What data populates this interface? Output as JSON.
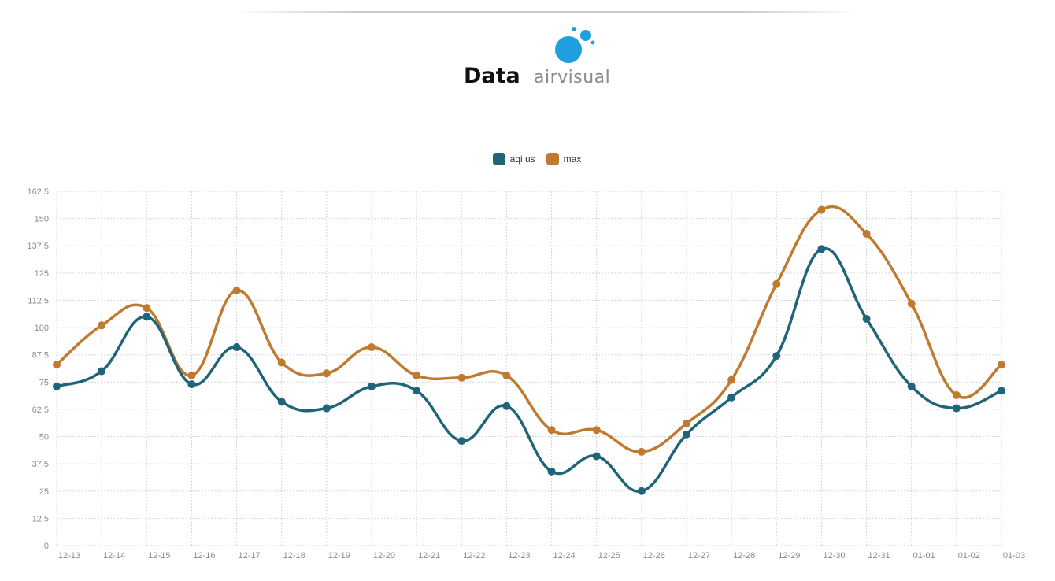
{
  "header": {
    "data_label": "Data",
    "logo_text": "airvisual",
    "colors": {
      "logo_blue": "#1e9fe0"
    }
  },
  "chart_data": {
    "type": "line",
    "categories": [
      "12-13",
      "12-14",
      "12-15",
      "12-16",
      "12-17",
      "12-18",
      "12-19",
      "12-20",
      "12-21",
      "12-22",
      "12-23",
      "12-24",
      "12-25",
      "12-26",
      "12-27",
      "12-28",
      "12-29",
      "12-30",
      "12-31",
      "01-01",
      "01-02",
      "01-03"
    ],
    "ylim": [
      0,
      162.5
    ],
    "yticks": [
      "0",
      "12.5",
      "25",
      "37.5",
      "50",
      "62.5",
      "75",
      "87.5",
      "100",
      "112.5",
      "125",
      "137.5",
      "150",
      "162.5"
    ],
    "grid": true,
    "smooth": true,
    "legend_position": "top-center",
    "series": [
      {
        "name": "aqi us",
        "color": "#1f6478",
        "values": [
          73,
          80,
          105,
          74,
          91,
          66,
          63,
          73,
          71,
          48,
          64,
          34,
          41,
          25,
          51,
          68,
          87,
          136,
          104,
          73,
          63,
          71
        ]
      },
      {
        "name": "max",
        "color": "#c07a30",
        "values": [
          83,
          101,
          109,
          78,
          117,
          84,
          79,
          91,
          78,
          77,
          78,
          53,
          53,
          43,
          56,
          76,
          120,
          154,
          143,
          111,
          69,
          83
        ]
      }
    ]
  }
}
